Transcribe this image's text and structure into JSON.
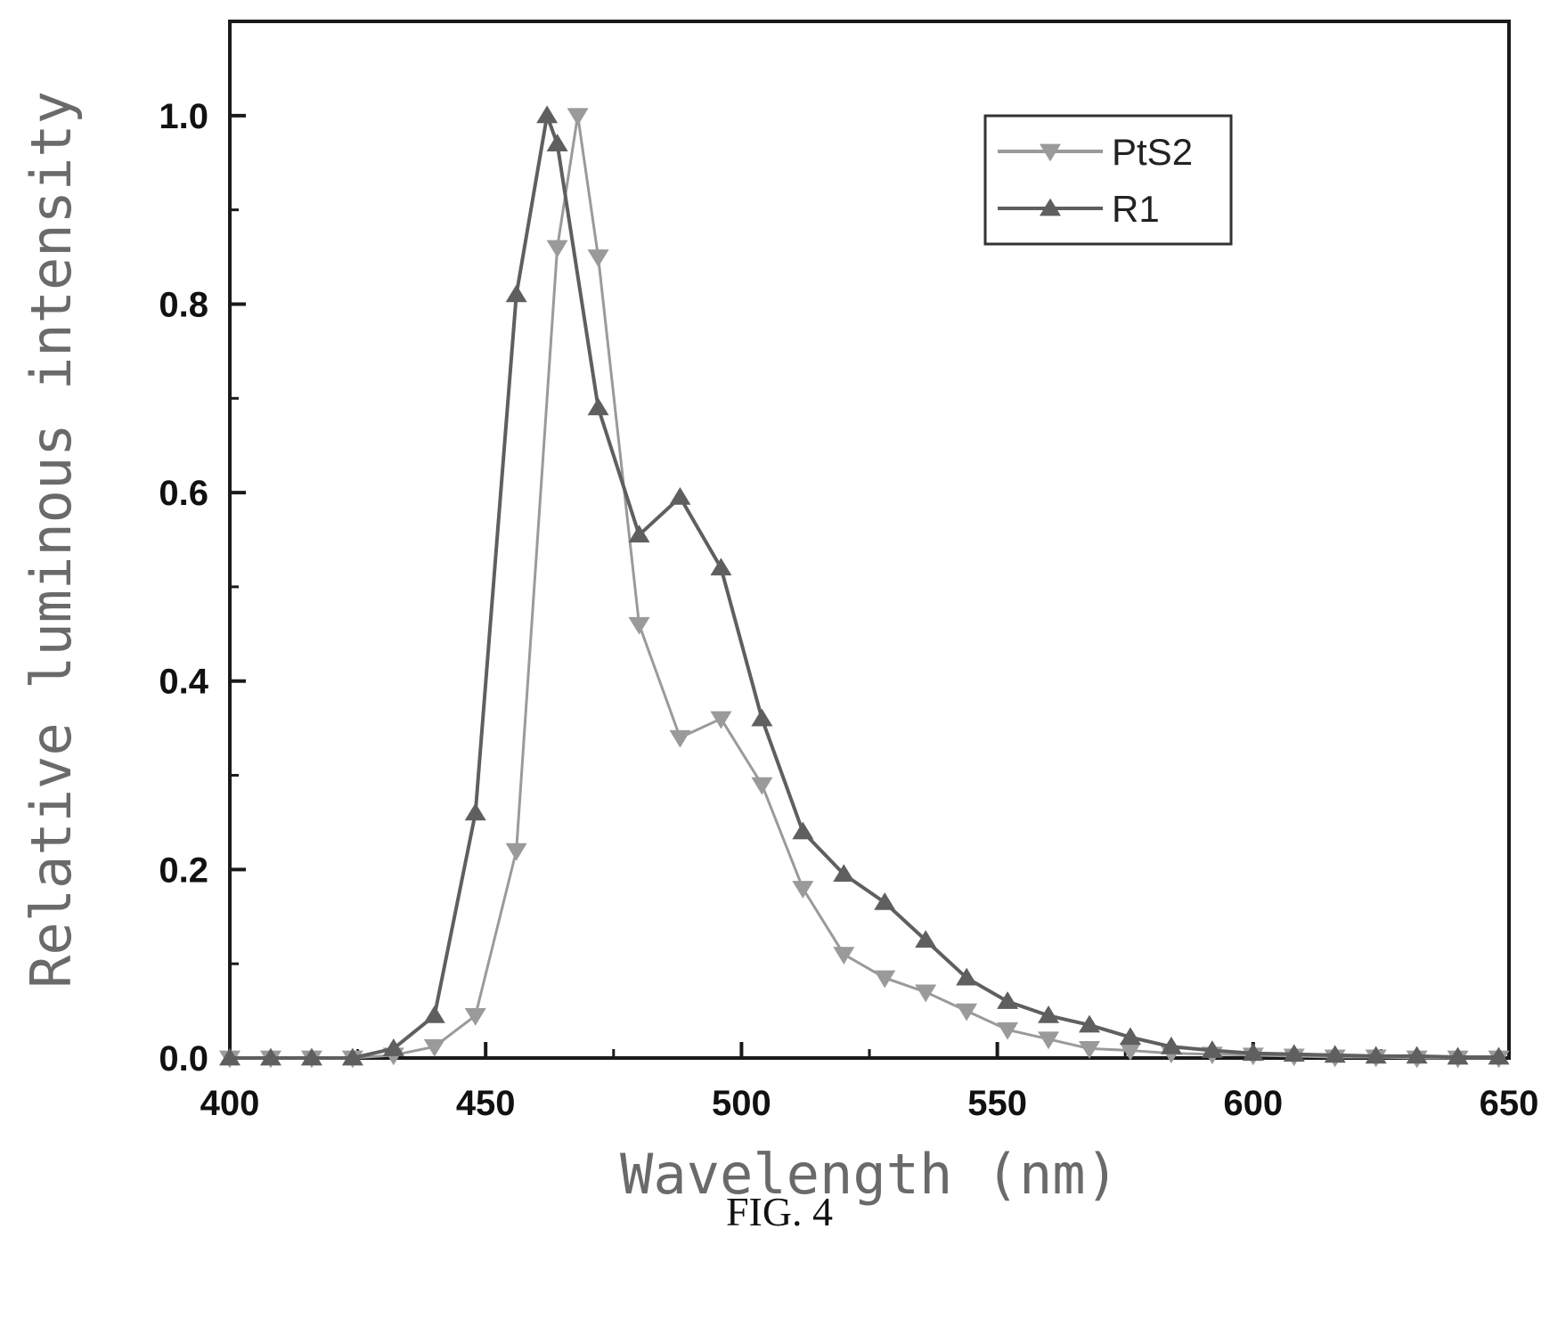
{
  "caption": "FIG. 4",
  "chart_data": {
    "type": "line",
    "xlabel": "Wavelength (nm)",
    "ylabel": "Relative luminous intensity",
    "xlim": [
      400,
      650
    ],
    "ylim": [
      0,
      1.1
    ],
    "xticks": [
      {
        "value": 400,
        "label": "400"
      },
      {
        "value": 450,
        "label": "450"
      },
      {
        "value": 500,
        "label": "500"
      },
      {
        "value": 550,
        "label": "550"
      },
      {
        "value": 600,
        "label": "600"
      },
      {
        "value": 650,
        "label": "650"
      }
    ],
    "yticks": [
      {
        "value": 0,
        "label": "0.0"
      },
      {
        "value": 0.2,
        "label": "0.2"
      },
      {
        "value": 0.4,
        "label": "0.4"
      },
      {
        "value": 0.6,
        "label": "0.6"
      },
      {
        "value": 0.8,
        "label": "0.8"
      },
      {
        "value": 1.0,
        "label": "1.0"
      }
    ],
    "grid": false,
    "legend_position": "top-right",
    "series": [
      {
        "name": "PtS2",
        "marker": "triangle-down",
        "color": "#9a9a9a",
        "x": [
          400,
          408,
          416,
          424,
          432,
          440,
          448,
          456,
          464,
          468,
          472,
          480,
          488,
          496,
          504,
          512,
          520,
          528,
          536,
          544,
          552,
          560,
          568,
          576,
          584,
          592,
          600,
          608,
          616,
          624,
          632,
          640,
          648
        ],
        "y": [
          0.0,
          0.0,
          0.0,
          0.0,
          0.003,
          0.012,
          0.045,
          0.22,
          0.86,
          1.0,
          0.85,
          0.46,
          0.34,
          0.36,
          0.29,
          0.18,
          0.11,
          0.085,
          0.07,
          0.05,
          0.03,
          0.02,
          0.01,
          0.008,
          0.005,
          0.004,
          0.003,
          0.002,
          0.001,
          0.001,
          0.0,
          0.0,
          0.0
        ]
      },
      {
        "name": "R1",
        "marker": "triangle-up",
        "color": "#5f5f5f",
        "x": [
          400,
          408,
          416,
          424,
          432,
          440,
          448,
          456,
          462,
          464,
          472,
          480,
          488,
          496,
          504,
          512,
          520,
          528,
          536,
          544,
          552,
          560,
          568,
          576,
          584,
          592,
          600,
          608,
          616,
          624,
          632,
          640,
          648
        ],
        "y": [
          0.0,
          0.0,
          0.0,
          0.0,
          0.01,
          0.045,
          0.26,
          0.81,
          1.0,
          0.97,
          0.69,
          0.555,
          0.595,
          0.52,
          0.36,
          0.24,
          0.195,
          0.165,
          0.125,
          0.085,
          0.06,
          0.045,
          0.035,
          0.022,
          0.012,
          0.008,
          0.005,
          0.004,
          0.003,
          0.002,
          0.002,
          0.001,
          0.001
        ]
      }
    ]
  }
}
